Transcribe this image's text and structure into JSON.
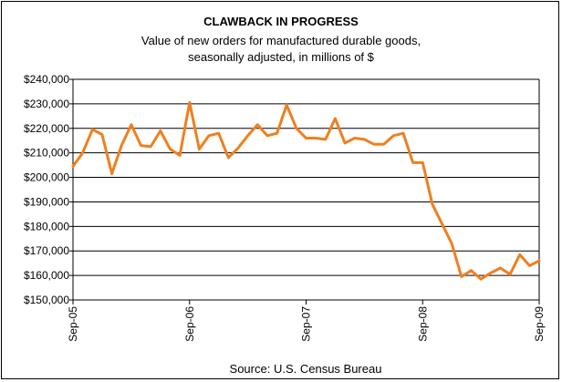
{
  "chart_data": {
    "type": "line",
    "title": "CLAWBACK IN PROGRESS",
    "subtitle_lines": [
      "Value of new orders for manufactured durable goods,",
      "seasonally adjusted, in millions of $"
    ],
    "source": "Source: U.S. Census Bureau",
    "ylim": [
      150000,
      240000
    ],
    "y_ticks": [
      240000,
      230000,
      220000,
      210000,
      200000,
      190000,
      180000,
      170000,
      160000,
      150000
    ],
    "y_tick_labels": [
      "$240,000",
      "$230,000",
      "$220,000",
      "$210,000",
      "$200,000",
      "$190,000",
      "$180,000",
      "$170,000",
      "$160,000",
      "$150,000"
    ],
    "x_tick_labels": [
      "Sep-05",
      "Sep-06",
      "Sep-07",
      "Sep-08",
      "Sep-09"
    ],
    "x_tick_month_index": [
      0,
      12,
      24,
      36,
      48
    ],
    "grid": true,
    "legend": "none",
    "colors": {
      "line": "#f07f1e",
      "grid": "#000000"
    },
    "series": [
      {
        "values": [
          204500,
          210000,
          219500,
          217500,
          201500,
          213000,
          221500,
          213000,
          212500,
          219000,
          211500,
          209000,
          230500,
          211500,
          217000,
          218000,
          208000,
          212000,
          217000,
          221500,
          217000,
          218000,
          229500,
          220000,
          216000,
          216000,
          215500,
          224000,
          214000,
          216000,
          215500,
          213500,
          213500,
          217000,
          218000,
          206000,
          206000,
          189000,
          181000,
          173000,
          159500,
          162000,
          158500,
          161000,
          163000,
          160500,
          168500,
          164000,
          166000
        ]
      }
    ]
  }
}
